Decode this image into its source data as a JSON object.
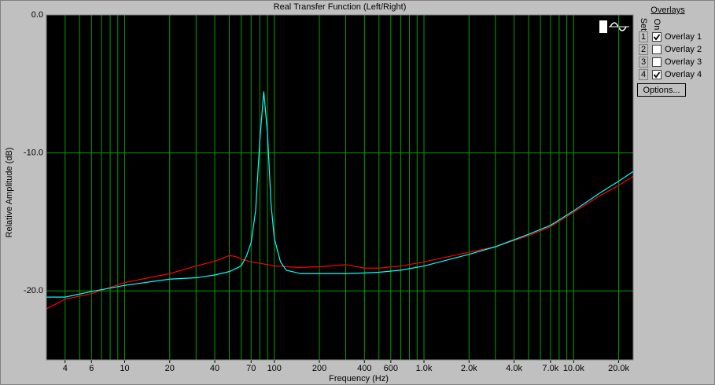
{
  "chart_data": {
    "type": "line",
    "title": "Real Transfer Function (Left/Right)",
    "x_label": "Frequency (Hz)",
    "y_label": "Relative Amplitude (dB)",
    "log_x": true,
    "grid": true,
    "background": "#000000",
    "grid_color": "#00a000",
    "xlim": [
      3,
      25000
    ],
    "ylim": [
      -25,
      0
    ],
    "xticks": [
      4,
      6,
      10,
      20,
      40,
      70,
      100,
      200,
      400,
      600,
      {
        "value": 1000,
        "label": "1.0k"
      },
      {
        "value": 2000,
        "label": "2.0k"
      },
      {
        "value": 4000,
        "label": "4.0k"
      },
      {
        "value": 7000,
        "label": "7.0k"
      },
      {
        "value": 10000,
        "label": "10.0k"
      },
      {
        "value": 20000,
        "label": "20.0k"
      }
    ],
    "x_minor_grid": [
      3,
      5,
      7,
      8,
      9,
      30,
      50,
      60,
      80,
      90,
      300,
      500,
      700,
      800,
      900,
      3000,
      5000,
      6000,
      8000,
      9000
    ],
    "yticks": [
      {
        "value": 0,
        "label": "0.0"
      },
      {
        "value": -10,
        "label": "-10.0"
      },
      {
        "value": -20,
        "label": "-20.0"
      }
    ],
    "x": [
      3,
      4,
      6,
      10,
      20,
      30,
      40,
      50,
      55,
      60,
      65,
      70,
      75,
      80,
      85,
      90,
      95,
      100,
      110,
      120,
      150,
      200,
      300,
      400,
      500,
      700,
      1000,
      2000,
      3000,
      5000,
      7000,
      10000,
      15000,
      20000,
      25000
    ],
    "series": [
      {
        "name": "Overlay 1",
        "color": "#ff0000",
        "values": [
          -21.3,
          -20.6,
          -20.2,
          -19.4,
          -18.75,
          -18.2,
          -17.85,
          -17.45,
          -17.5,
          -17.7,
          -17.8,
          -17.9,
          -17.95,
          -18.0,
          -18.05,
          -18.1,
          -18.15,
          -18.2,
          -18.2,
          -18.25,
          -18.3,
          -18.25,
          -18.1,
          -18.35,
          -18.35,
          -18.2,
          -17.9,
          -17.2,
          -16.8,
          -16.0,
          -15.35,
          -14.3,
          -13.1,
          -12.35,
          -11.7
        ]
      },
      {
        "name": "Overlay 4",
        "color": "#00ffff",
        "values": [
          -20.45,
          -20.45,
          -20.05,
          -19.6,
          -19.15,
          -19.05,
          -18.85,
          -18.6,
          -18.4,
          -18.2,
          -17.5,
          -16.5,
          -14.2,
          -9.1,
          -5.55,
          -8.55,
          -13.65,
          -16.2,
          -17.9,
          -18.5,
          -18.75,
          -18.75,
          -18.75,
          -18.7,
          -18.65,
          -18.5,
          -18.2,
          -17.35,
          -16.8,
          -15.9,
          -15.25,
          -14.2,
          -12.9,
          -12.05,
          -11.35
        ]
      }
    ]
  },
  "panel": {
    "title": "Overlays",
    "set_header": "Set",
    "on_header": "On",
    "button": "Options...",
    "rows": [
      {
        "set": 1,
        "checked": true
      },
      {
        "set": 2,
        "name": "Overlay 2",
        "color": "#ff00ff",
        "checked": false
      },
      {
        "set": 3,
        "name": "Overlay 3",
        "color": "#0000ff",
        "checked": false
      },
      {
        "set": 4,
        "checked": true
      }
    ]
  }
}
